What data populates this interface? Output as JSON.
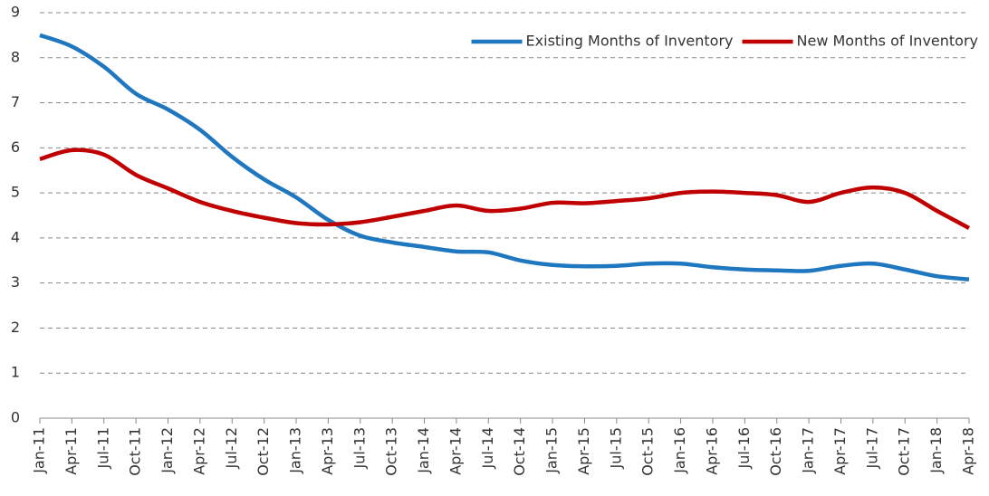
{
  "chart_data": {
    "type": "line",
    "categories": [
      "Jan-11",
      "Apr-11",
      "Jul-11",
      "Oct-11",
      "Jan-12",
      "Apr-12",
      "Jul-12",
      "Oct-12",
      "Jan-13",
      "Apr-13",
      "Jul-13",
      "Oct-13",
      "Jan-14",
      "Apr-14",
      "Jul-14",
      "Oct-14",
      "Jan-15",
      "Apr-15",
      "Jul-15",
      "Oct-15",
      "Jan-16",
      "Apr-16",
      "Jul-16",
      "Oct-16",
      "Jan-17",
      "Apr-17",
      "Jul-17",
      "Oct-17",
      "Jan-18",
      "Apr-18"
    ],
    "series": [
      {
        "name": "Existing Months of Inventory",
        "color": "#1f77c0",
        "values": [
          8.5,
          8.25,
          7.8,
          7.2,
          6.85,
          6.4,
          5.8,
          5.3,
          4.9,
          4.4,
          4.05,
          3.9,
          3.8,
          3.7,
          3.68,
          3.5,
          3.4,
          3.37,
          3.38,
          3.43,
          3.43,
          3.35,
          3.3,
          3.28,
          3.27,
          3.38,
          3.43,
          3.3,
          3.15,
          3.08
        ]
      },
      {
        "name": "New Months of Inventory",
        "color": "#c00000",
        "values": [
          5.75,
          5.95,
          5.85,
          5.4,
          5.1,
          4.8,
          4.6,
          4.45,
          4.33,
          4.3,
          4.35,
          4.47,
          4.6,
          4.72,
          4.6,
          4.65,
          4.78,
          4.77,
          4.82,
          4.88,
          5.0,
          5.03,
          5.0,
          4.95,
          4.8,
          5.0,
          5.12,
          5.0,
          4.6,
          4.22
        ]
      }
    ],
    "ylim": [
      0,
      9
    ],
    "yticks": [
      0,
      1,
      2,
      3,
      4,
      5,
      6,
      7,
      8,
      9
    ],
    "grid": true,
    "legend": "top-right"
  }
}
